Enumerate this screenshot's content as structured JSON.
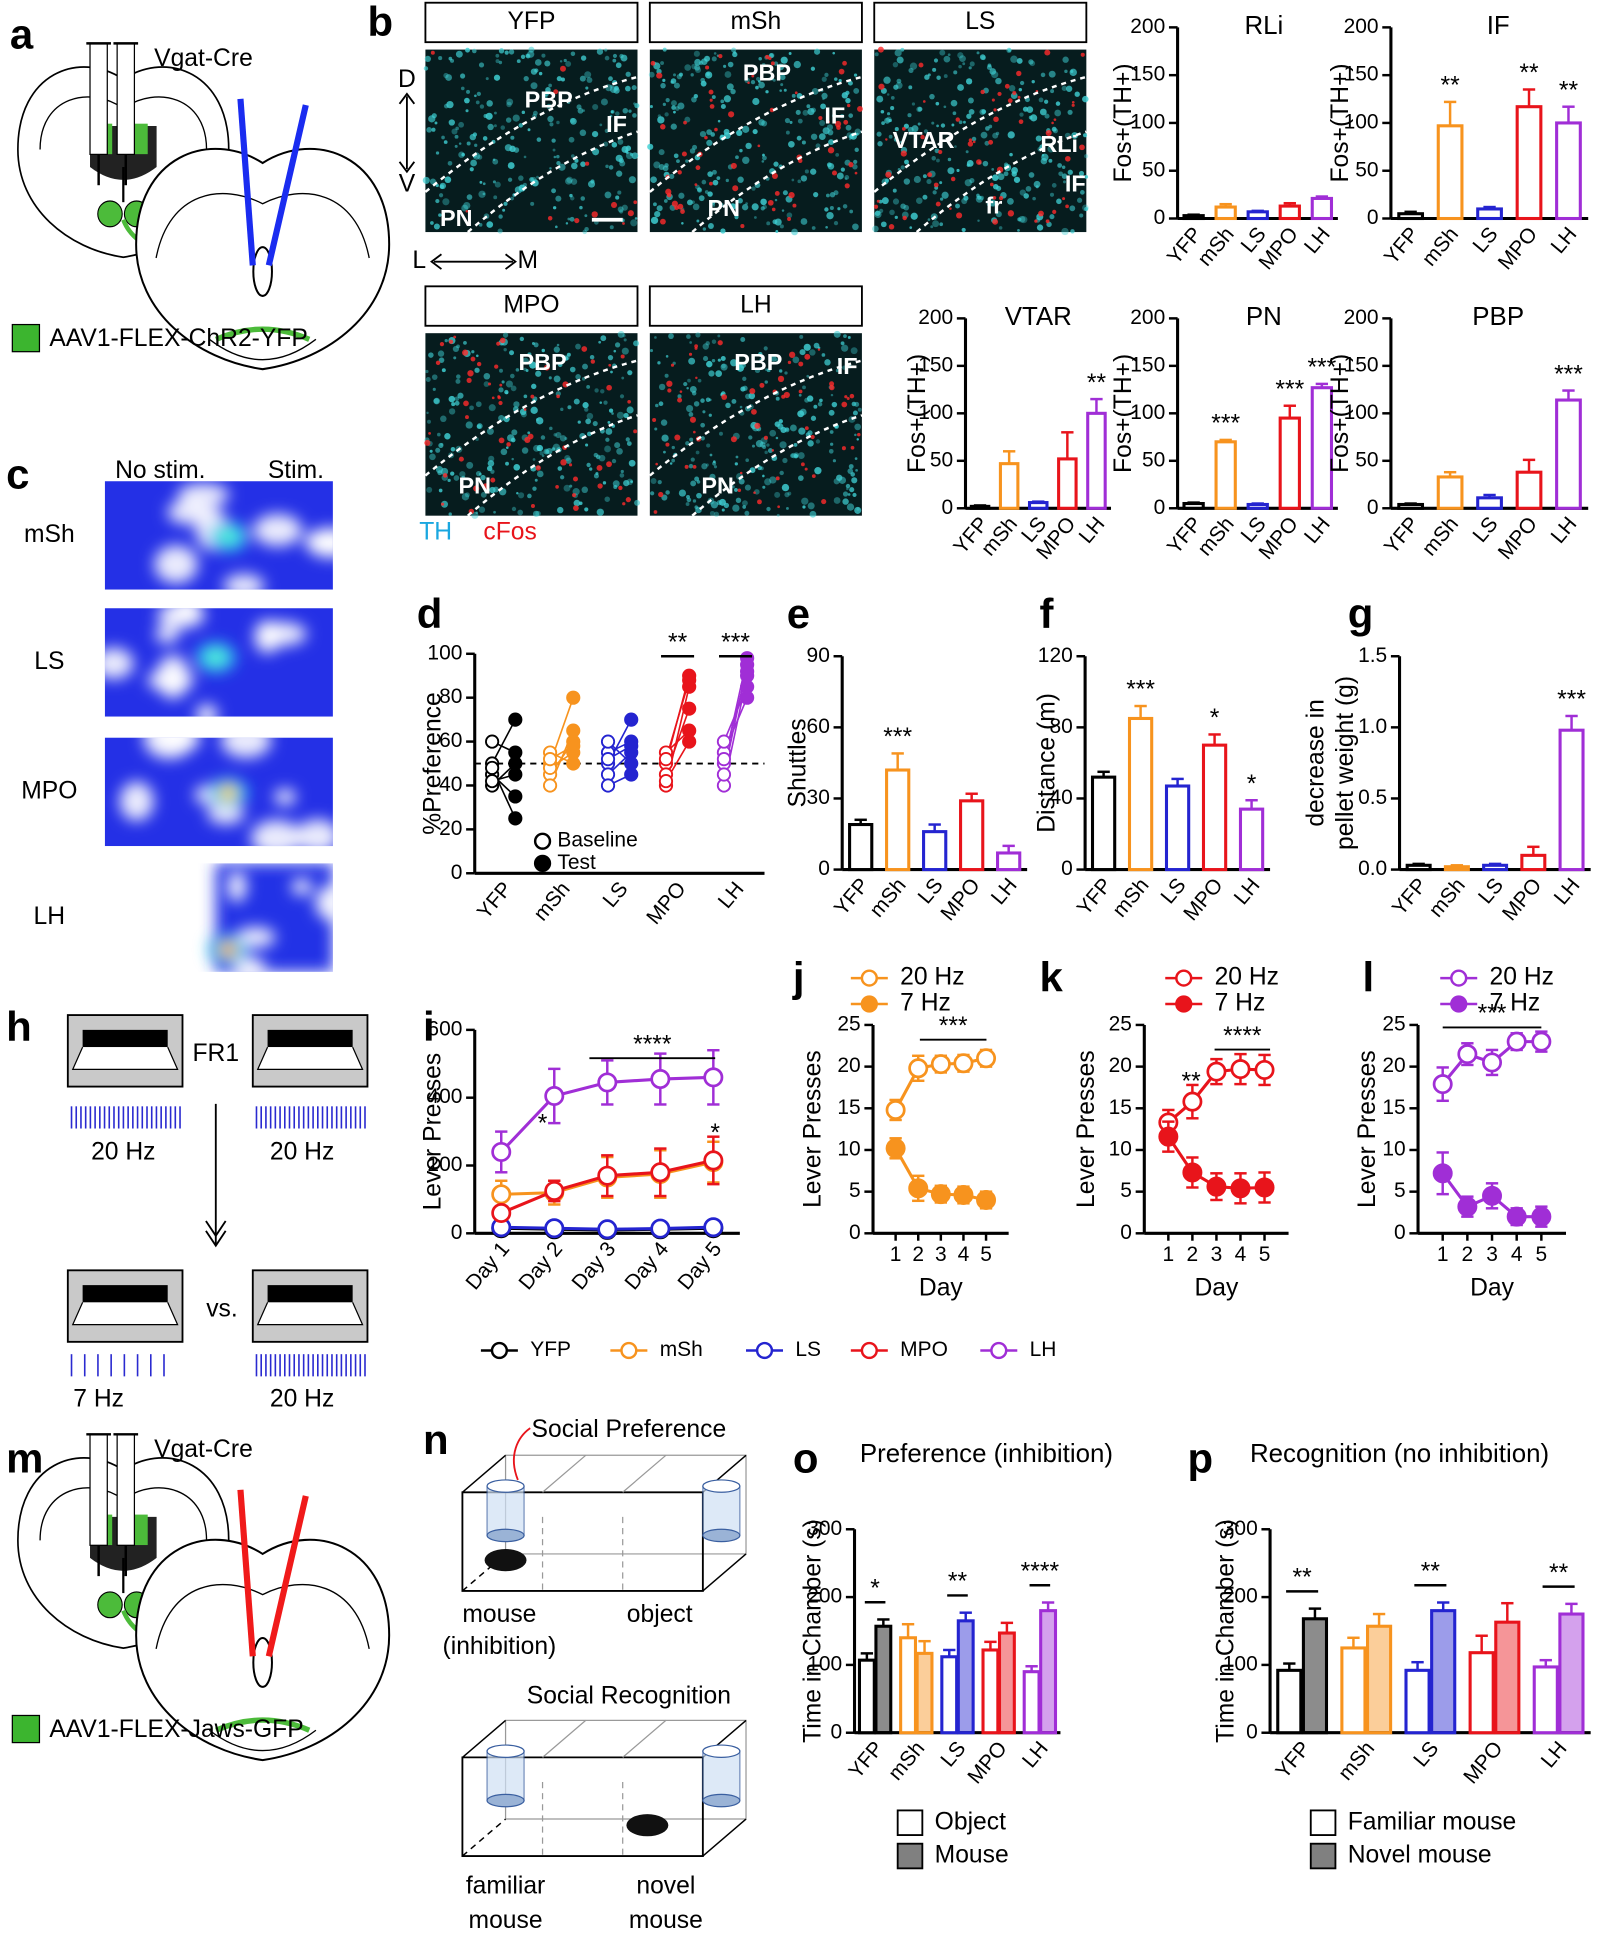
{
  "figure": {
    "panel_labels": [
      "a",
      "b",
      "c",
      "d",
      "e",
      "f",
      "g",
      "h",
      "i",
      "j",
      "k",
      "l",
      "m",
      "n",
      "o",
      "p"
    ],
    "injection_chr2": {
      "mouse_line": "Vgat-Cre",
      "virus": "AAV1-FLEX-ChR2-YFP"
    },
    "micrographs": [
      {
        "label": "YFP",
        "regions": [
          "PBP",
          "IF",
          "PN"
        ]
      },
      {
        "label": "mSh",
        "regions": [
          "PBP",
          "IF",
          "PN"
        ]
      },
      {
        "label": "LS",
        "regions": [
          "VTAR",
          "RLi",
          "fr",
          "IF"
        ]
      },
      {
        "label": "MPO",
        "regions": [
          "PBP",
          "PN"
        ]
      },
      {
        "label": "LH",
        "regions": [
          "PBP",
          "IF",
          "PN"
        ]
      }
    ],
    "axes_dv": [
      "D",
      "V"
    ],
    "axes_lm": [
      "L",
      "M"
    ],
    "stains": [
      "TH",
      "cFos"
    ],
    "heatmap": {
      "columns": [
        "No stim.",
        "Stim."
      ],
      "rows": [
        "mSh",
        "LS",
        "MPO",
        "LH"
      ]
    },
    "lever_task": {
      "schedule": "FR1",
      "training": [
        "20 Hz",
        "20 Hz"
      ],
      "comparison": "vs.",
      "test": [
        "7 Hz",
        "20 Hz"
      ]
    },
    "injection_jaws": {
      "mouse_line": "Vgat-Cre",
      "virus": "AAV1-FLEX-Jaws-GFP"
    },
    "social_preference": {
      "title": "Social Preference",
      "left": [
        "mouse",
        "(inhibition)"
      ],
      "right": [
        "object"
      ]
    },
    "social_recognition": {
      "title": "Social Recognition",
      "left": [
        "familiar",
        "mouse"
      ],
      "right": [
        "novel",
        "mouse"
      ]
    }
  },
  "chart_data": [
    {
      "type": "bar",
      "title": "RLi",
      "y_label": "Fos+(TH+)",
      "categories": [
        "YFP",
        "mSh",
        "LS",
        "MPO",
        "LH"
      ],
      "values": [
        3,
        12,
        7,
        13,
        21
      ],
      "errors": [
        1,
        3,
        1,
        3,
        2
      ],
      "colors": [
        "#000000",
        "#f7931e",
        "#2424d0",
        "#e8141b",
        "#a02ed6"
      ],
      "significance": [
        null,
        null,
        null,
        null,
        null
      ],
      "ylim": [
        0,
        200
      ],
      "yticks": [
        0,
        50,
        100,
        150,
        200
      ]
    },
    {
      "type": "bar",
      "title": "IF",
      "y_label": "Fos+(TH+)",
      "categories": [
        "YFP",
        "mSh",
        "LS",
        "MPO",
        "LH"
      ],
      "values": [
        5,
        97,
        10,
        117,
        100
      ],
      "errors": [
        2,
        25,
        2,
        18,
        17
      ],
      "colors": [
        "#000000",
        "#f7931e",
        "#2424d0",
        "#e8141b",
        "#a02ed6"
      ],
      "significance": [
        null,
        "**",
        null,
        "**",
        "**"
      ],
      "ylim": [
        0,
        200
      ],
      "yticks": [
        0,
        50,
        100,
        150,
        200
      ]
    },
    {
      "type": "bar",
      "title": "VTAR",
      "y_label": "Fos+(TH+)",
      "categories": [
        "YFP",
        "mSh",
        "LS",
        "MPO",
        "LH"
      ],
      "values": [
        2,
        47,
        6,
        52,
        100
      ],
      "errors": [
        1,
        13,
        1,
        28,
        15
      ],
      "colors": [
        "#000000",
        "#f7931e",
        "#2424d0",
        "#e8141b",
        "#a02ed6"
      ],
      "significance": [
        null,
        null,
        null,
        null,
        "**"
      ],
      "ylim": [
        0,
        200
      ],
      "yticks": [
        0,
        50,
        100,
        150,
        200
      ]
    },
    {
      "type": "bar",
      "title": "PN",
      "y_label": "Fos+(TH+)",
      "categories": [
        "YFP",
        "mSh",
        "LS",
        "MPO",
        "LH"
      ],
      "values": [
        5,
        70,
        4,
        95,
        127
      ],
      "errors": [
        1,
        2,
        1,
        13,
        4
      ],
      "colors": [
        "#000000",
        "#f7931e",
        "#2424d0",
        "#e8141b",
        "#a02ed6"
      ],
      "significance": [
        null,
        "***",
        null,
        "***",
        "***"
      ],
      "ylim": [
        0,
        200
      ],
      "yticks": [
        0,
        50,
        100,
        150,
        200
      ]
    },
    {
      "type": "bar",
      "title": "PBP",
      "y_label": "Fos+(TH+)",
      "categories": [
        "YFP",
        "mSh",
        "LS",
        "MPO",
        "LH"
      ],
      "values": [
        4,
        33,
        11,
        38,
        114
      ],
      "errors": [
        1,
        5,
        3,
        13,
        10
      ],
      "colors": [
        "#000000",
        "#f7931e",
        "#2424d0",
        "#e8141b",
        "#a02ed6"
      ],
      "significance": [
        null,
        null,
        null,
        null,
        "***"
      ],
      "ylim": [
        0,
        200
      ],
      "yticks": [
        0,
        50,
        100,
        150,
        200
      ]
    },
    {
      "type": "paired_dot",
      "y_label": "%Preference",
      "categories": [
        "YFP",
        "mSh",
        "LS",
        "MPO",
        "LH"
      ],
      "colors": [
        "#000000",
        "#f7931e",
        "#2424d0",
        "#e8141b",
        "#a02ed6"
      ],
      "series": [
        {
          "name": "Baseline",
          "color": "#000000",
          "marker": "open",
          "values": [
            [
              50,
              45,
              40,
              60,
              48,
              42
            ],
            [
              50,
              45,
              55,
              40,
              48,
              52
            ],
            [
              50,
              55,
              45,
              40,
              60,
              52
            ],
            [
              50,
              45,
              40,
              55,
              42,
              52
            ],
            [
              50,
              40,
              45,
              55,
              60,
              52
            ]
          ]
        },
        {
          "name": "Test",
          "color": "#000000",
          "marker": "filled",
          "values": [
            [
              70,
              35,
              50,
              55,
              25,
              45
            ],
            [
              80,
              60,
              50,
              65,
              55,
              58
            ],
            [
              70,
              60,
              55,
              45,
              50,
              58
            ],
            [
              90,
              75,
              85,
              65,
              60,
              88
            ],
            [
              98,
              90,
              95,
              80,
              85,
              92
            ]
          ]
        }
      ],
      "reference_line": 50,
      "significance": [
        null,
        null,
        null,
        "**",
        "***"
      ],
      "ylim": [
        0,
        100
      ],
      "yticks": [
        0,
        20,
        40,
        60,
        80,
        100
      ]
    },
    {
      "type": "bar",
      "y_label": "Shuttles",
      "categories": [
        "YFP",
        "mSh",
        "LS",
        "MPO",
        "LH"
      ],
      "values": [
        19,
        42,
        16,
        29,
        7
      ],
      "errors": [
        2,
        7,
        3,
        3,
        3
      ],
      "colors": [
        "#000000",
        "#f7931e",
        "#2424d0",
        "#e8141b",
        "#a02ed6"
      ],
      "significance": [
        null,
        "***",
        null,
        null,
        null
      ],
      "ylim": [
        0,
        90
      ],
      "yticks": [
        0,
        30,
        60,
        90
      ]
    },
    {
      "type": "bar",
      "y_label": "Distance (m)",
      "categories": [
        "YFP",
        "mSh",
        "LS",
        "MPO",
        "LH"
      ],
      "values": [
        52,
        85,
        47,
        70,
        34
      ],
      "errors": [
        3,
        7,
        4,
        6,
        5
      ],
      "colors": [
        "#000000",
        "#f7931e",
        "#2424d0",
        "#e8141b",
        "#a02ed6"
      ],
      "significance": [
        null,
        "***",
        null,
        "*",
        "*"
      ],
      "ylim": [
        0,
        120
      ],
      "yticks": [
        0,
        40,
        80,
        120
      ]
    },
    {
      "type": "bar",
      "y_label": [
        "decrease in",
        "pellet weight (g)"
      ],
      "categories": [
        "YFP",
        "mSh",
        "LS",
        "MPO",
        "LH"
      ],
      "values": [
        0.03,
        0.02,
        0.03,
        0.1,
        0.98
      ],
      "errors": [
        0.01,
        0.01,
        0.01,
        0.06,
        0.1
      ],
      "colors": [
        "#000000",
        "#f7931e",
        "#2424d0",
        "#e8141b",
        "#a02ed6"
      ],
      "significance": [
        null,
        null,
        null,
        null,
        "***"
      ],
      "ylim": [
        0,
        1.5
      ],
      "yticks": [
        {
          "value": 0,
          "label": "0.0"
        },
        0.5,
        {
          "value": 1,
          "label": "1.0"
        },
        1.5
      ]
    },
    {
      "type": "line",
      "y_label": "Lever Presses",
      "categories": [
        "Day 1",
        "Day 2",
        "Day 3",
        "Day 4",
        "Day 5"
      ],
      "series": [
        {
          "name": "YFP",
          "color": "#000000",
          "marker": "open",
          "values": [
            15,
            12,
            10,
            12,
            15
          ],
          "errors": [
            3,
            3,
            2,
            3,
            3
          ]
        },
        {
          "name": "mSh",
          "color": "#f7931e",
          "marker": "open",
          "values": [
            115,
            120,
            165,
            175,
            210
          ],
          "errors": [
            40,
            35,
            60,
            70,
            60
          ]
        },
        {
          "name": "LS",
          "color": "#2424d0",
          "marker": "open",
          "values": [
            18,
            15,
            12,
            14,
            18
          ],
          "errors": [
            3,
            3,
            3,
            3,
            3
          ]
        },
        {
          "name": "MPO",
          "color": "#e8141b",
          "marker": "open",
          "values": [
            60,
            125,
            170,
            180,
            215
          ],
          "errors": [
            20,
            30,
            60,
            70,
            70
          ]
        },
        {
          "name": "LH",
          "color": "#a02ed6",
          "marker": "open",
          "values": [
            240,
            405,
            445,
            455,
            460
          ],
          "errors": [
            60,
            80,
            65,
            75,
            80
          ]
        }
      ],
      "annotations": [
        "*",
        "****",
        "*"
      ],
      "ylim": [
        0,
        600
      ],
      "yticks": [
        0,
        200,
        400,
        600
      ]
    },
    {
      "type": "line",
      "y_label": "Lever Presses",
      "x_label": "Day",
      "x": [
        1,
        2,
        3,
        4,
        5
      ],
      "xlim": [
        0,
        6
      ],
      "xticks": [
        1,
        2,
        3,
        4,
        5
      ],
      "series": [
        {
          "name": "20 Hz",
          "color": "#f7931e",
          "marker": "open",
          "values": [
            14.8,
            19.8,
            20.3,
            20.4,
            21
          ],
          "errors": [
            1.2,
            1.5,
            1,
            1,
            1
          ]
        },
        {
          "name": "7 Hz",
          "color": "#f7931e",
          "marker": "filled",
          "values": [
            10.2,
            5.4,
            4.7,
            4.6,
            4
          ],
          "errors": [
            1.2,
            1.5,
            1,
            1,
            1
          ]
        }
      ],
      "annotations": [
        "***"
      ],
      "ylim": [
        0,
        25
      ],
      "yticks": [
        0,
        5,
        10,
        15,
        20,
        25
      ]
    },
    {
      "type": "line",
      "y_label": "Lever Presses",
      "x_label": "Day",
      "x": [
        1,
        2,
        3,
        4,
        5
      ],
      "xlim": [
        0,
        6
      ],
      "xticks": [
        1,
        2,
        3,
        4,
        5
      ],
      "series": [
        {
          "name": "20 Hz",
          "color": "#e8141b",
          "marker": "open",
          "values": [
            13.3,
            15.8,
            19.4,
            19.7,
            19.6
          ],
          "errors": [
            1.5,
            2,
            1.5,
            1.8,
            1.8
          ]
        },
        {
          "name": "7 Hz",
          "color": "#e8141b",
          "marker": "filled",
          "values": [
            11.6,
            7.3,
            5.6,
            5.4,
            5.5
          ],
          "errors": [
            1.8,
            1.8,
            1.6,
            1.8,
            1.8
          ]
        }
      ],
      "annotations": [
        "**",
        "****"
      ],
      "ylim": [
        0,
        25
      ],
      "yticks": [
        0,
        5,
        10,
        15,
        20,
        25
      ]
    },
    {
      "type": "line",
      "y_label": "Lever Presses",
      "x_label": "Day",
      "x": [
        1,
        2,
        3,
        4,
        5
      ],
      "xlim": [
        0,
        6
      ],
      "xticks": [
        1,
        2,
        3,
        4,
        5
      ],
      "series": [
        {
          "name": "20 Hz",
          "color": "#a02ed6",
          "marker": "open",
          "values": [
            17.9,
            21.5,
            20.5,
            23,
            23
          ],
          "errors": [
            2,
            1.3,
            1.5,
            1,
            1.2
          ]
        },
        {
          "name": "7 Hz",
          "color": "#a02ed6",
          "marker": "filled",
          "values": [
            7.2,
            3.2,
            4.5,
            2,
            2
          ],
          "errors": [
            2.5,
            1.2,
            1.5,
            1,
            1.2
          ]
        }
      ],
      "annotations": [
        "***"
      ],
      "ylim": [
        0,
        25
      ],
      "yticks": [
        0,
        5,
        10,
        15,
        20,
        25
      ]
    },
    {
      "type": "grouped_bar",
      "title": "Preference (inhibition)",
      "y_label": "Time in Chamber (s)",
      "categories": [
        "YFP",
        "mSh",
        "LS",
        "MPO",
        "LH"
      ],
      "colors": [
        "#000000",
        "#f7931e",
        "#2424d0",
        "#e8141b",
        "#a02ed6"
      ],
      "series": [
        {
          "name": "Object",
          "color": "#ffffff",
          "values": [
            107,
            140,
            112,
            122,
            90
          ],
          "errors": [
            10,
            20,
            10,
            12,
            8
          ]
        },
        {
          "name": "Mouse",
          "color": "#808080",
          "values": [
            157,
            117,
            165,
            147,
            180
          ],
          "errors": [
            10,
            18,
            12,
            15,
            12
          ]
        }
      ],
      "significance": [
        "*",
        null,
        "**",
        null,
        "****"
      ],
      "ylim": [
        0,
        300
      ],
      "yticks": [
        0,
        100,
        200,
        300
      ]
    },
    {
      "type": "grouped_bar",
      "title": "Recognition (no inhibition)",
      "y_label": "Time in Chamber (s)",
      "categories": [
        "YFP",
        "mSh",
        "LS",
        "MPO",
        "LH"
      ],
      "colors": [
        "#000000",
        "#f7931e",
        "#2424d0",
        "#e8141b",
        "#a02ed6"
      ],
      "series": [
        {
          "name": "Familiar mouse",
          "color": "#ffffff",
          "values": [
            92,
            125,
            92,
            118,
            97
          ],
          "errors": [
            10,
            15,
            12,
            25,
            10
          ]
        },
        {
          "name": "Novel mouse",
          "color": "#808080",
          "values": [
            168,
            157,
            180,
            163,
            175
          ],
          "errors": [
            15,
            18,
            12,
            28,
            15
          ]
        }
      ],
      "significance": [
        "**",
        null,
        "**",
        null,
        "**"
      ],
      "ylim": [
        0,
        300
      ],
      "yticks": [
        0,
        100,
        200,
        300
      ]
    }
  ]
}
